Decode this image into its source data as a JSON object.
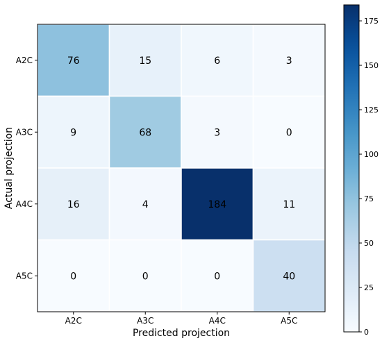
{
  "chart_data": {
    "type": "heatmap",
    "title": "",
    "xlabel": "Predicted projection",
    "ylabel": "Actual projection",
    "x_categories": [
      "A2C",
      "A3C",
      "A4C",
      "A5C"
    ],
    "y_categories": [
      "A2C",
      "A3C",
      "A4C",
      "A5C"
    ],
    "values": [
      [
        76,
        15,
        6,
        3
      ],
      [
        9,
        68,
        3,
        0
      ],
      [
        16,
        4,
        184,
        11
      ],
      [
        0,
        0,
        0,
        40
      ]
    ],
    "colormap": "Blues",
    "colorbar": {
      "min": 0,
      "max": 184,
      "ticks": [
        0,
        25,
        50,
        75,
        100,
        125,
        150,
        175
      ]
    },
    "colors": {
      "low": "#f7fbff",
      "high": "#08306b"
    }
  }
}
